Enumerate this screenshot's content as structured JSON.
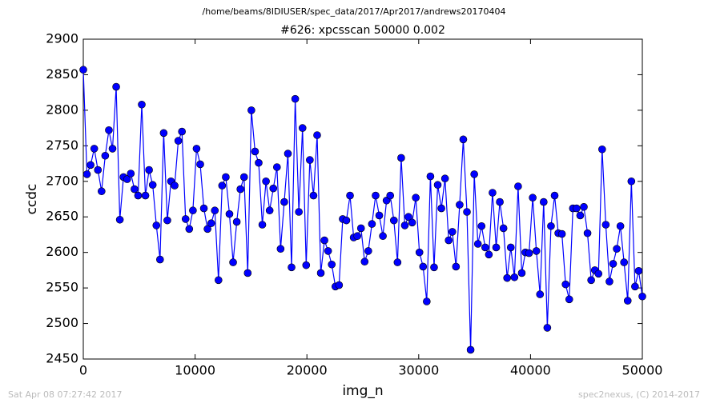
{
  "chart_data": {
    "type": "line",
    "suptitle": "/home/beams/8IDIUSER/spec_data/2017/Apr2017/andrews20170404",
    "title": "#626: xpcsscan 50000 0.002",
    "xlabel": "img_n",
    "ylabel": "ccdc",
    "footer_left": "Sat Apr 08 07:27:42 2017",
    "footer_right": "spec2nexus, (C) 2014-2017",
    "xlim": [
      0,
      50000
    ],
    "xticks": [
      0,
      10000,
      20000,
      30000,
      40000,
      50000
    ],
    "ylim": [
      2450,
      2900
    ],
    "yticks": [
      2450,
      2500,
      2550,
      2600,
      2650,
      2700,
      2750,
      2800,
      2850,
      2900
    ],
    "x": [
      0,
      327,
      654,
      980,
      1307,
      1634,
      1961,
      2288,
      2614,
      2941,
      3268,
      3595,
      3922,
      4248,
      4575,
      4902,
      5229,
      5556,
      5882,
      6209,
      6536,
      6863,
      7190,
      7516,
      7843,
      8170,
      8497,
      8824,
      9150,
      9477,
      9804,
      10131,
      10458,
      10784,
      11111,
      11438,
      11765,
      12092,
      12418,
      12745,
      13072,
      13399,
      13725,
      14052,
      14379,
      14706,
      15033,
      15359,
      15686,
      16013,
      16340,
      16667,
      16993,
      17320,
      17647,
      17974,
      18301,
      18627,
      18954,
      19281,
      19608,
      19935,
      20261,
      20588,
      20915,
      21242,
      21569,
      21895,
      22222,
      22549,
      22876,
      23203,
      23529,
      23856,
      24183,
      24510,
      24837,
      25163,
      25490,
      25817,
      26144,
      26471,
      26797,
      27124,
      27451,
      27778,
      28105,
      28431,
      28758,
      29085,
      29412,
      29739,
      30065,
      30392,
      30719,
      31046,
      31373,
      31699,
      32026,
      32353,
      32680,
      33007,
      33333,
      33660,
      33987,
      34314,
      34641,
      34967,
      35294,
      35621,
      35948,
      36275,
      36601,
      36928,
      37255,
      37582,
      37908,
      38235,
      38562,
      38889,
      39216,
      39542,
      39869,
      40196,
      40523,
      40850,
      41176,
      41503,
      41830,
      42157,
      42484,
      42810,
      43137,
      43464,
      43791,
      44118,
      44444,
      44771,
      45098,
      45425,
      45752,
      46078,
      46405,
      46732,
      47059,
      47386,
      47712,
      48039,
      48366,
      48693,
      49020,
      49346,
      49673,
      50000
    ],
    "series": [
      {
        "color": "#0000ff",
        "values": [
          2857,
          2710,
          2723,
          2746,
          2716,
          2686,
          2736,
          2772,
          2746,
          2833,
          2646,
          2706,
          2703,
          2711,
          2689,
          2680,
          2808,
          2680,
          2716,
          2695,
          2638,
          2590,
          2768,
          2645,
          2700,
          2694,
          2757,
          2770,
          2647,
          2633,
          2659,
          2746,
          2724,
          2662,
          2633,
          2641,
          2659,
          2561,
          2694,
          2706,
          2654,
          2586,
          2643,
          2689,
          2706,
          2571,
          2800,
          2742,
          2726,
          2639,
          2700,
          2659,
          2690,
          2720,
          2605,
          2671,
          2739,
          2579,
          2816,
          2657,
          2775,
          2582,
          2730,
          2680,
          2765,
          2571,
          2617,
          2602,
          2583,
          2552,
          2554,
          2647,
          2645,
          2680,
          2621,
          2623,
          2634,
          2587,
          2602,
          2640,
          2680,
          2652,
          2623,
          2673,
          2680,
          2645,
          2586,
          2733,
          2638,
          2650,
          2642,
          2677,
          2600,
          2580,
          2531,
          2707,
          2579,
          2695,
          2662,
          2704,
          2617,
          2629,
          2580,
          2667,
          2759,
          2657,
          2463,
          2710,
          2612,
          2637,
          2607,
          2597,
          2684,
          2607,
          2671,
          2634,
          2564,
          2607,
          2565,
          2693,
          2571,
          2600,
          2599,
          2677,
          2602,
          2541,
          2671,
          2494,
          2637,
          2680,
          2627,
          2626,
          2555,
          2534,
          2662,
          2662,
          2652,
          2664,
          2627,
          2561,
          2575,
          2570,
          2745,
          2639,
          2559,
          2584,
          2605,
          2637,
          2586,
          2532,
          2700,
          2552,
          2574,
          2538
        ]
      }
    ]
  }
}
